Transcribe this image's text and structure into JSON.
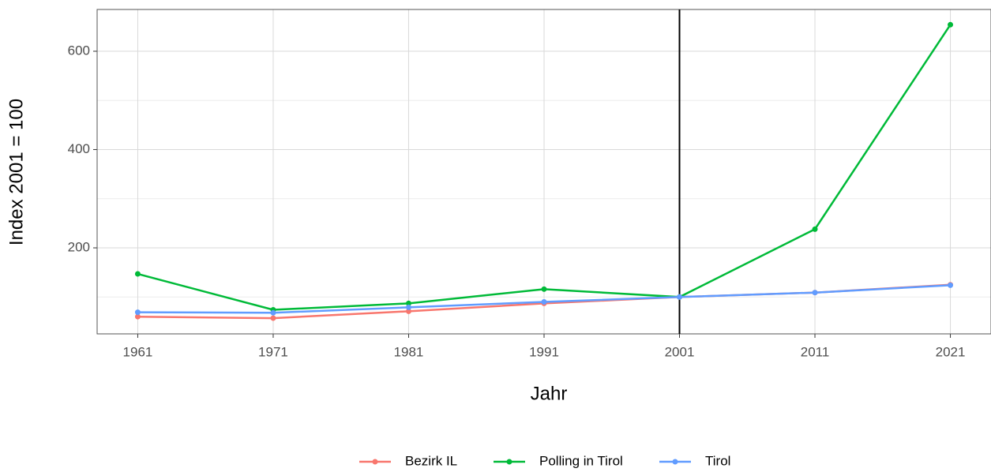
{
  "chart_data": {
    "type": "line",
    "x_label": "Jahr",
    "y_label": "Index 2001 = 100",
    "x": [
      1961,
      1971,
      1981,
      1991,
      2001,
      2011,
      2021
    ],
    "series": [
      {
        "name": "Bezirk IL",
        "color": "#F8766D",
        "values": [
          60,
          57,
          71,
          87,
          100,
          109,
          125
        ]
      },
      {
        "name": "Polling in Tirol",
        "color": "#00BA38",
        "values": [
          147,
          74,
          87,
          116,
          100,
          238,
          654
        ]
      },
      {
        "name": "Tirol",
        "color": "#619CFF",
        "values": [
          69,
          68,
          79,
          90,
          100,
          109,
          124
        ]
      }
    ],
    "xlim": [
      1958,
      2024
    ],
    "xticks": [
      1961,
      1971,
      1981,
      1991,
      2001,
      2011,
      2021
    ],
    "ylim": [
      25,
      685
    ],
    "yticks": [
      200,
      400,
      600
    ],
    "minor_yticks": [
      100,
      300,
      500
    ],
    "vline": 2001,
    "grid": true,
    "legend": "bottom"
  }
}
